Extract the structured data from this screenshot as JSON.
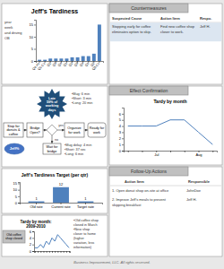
{
  "annotations": [
    "Stop for\ndonuts &\ncoffee",
    "Bridge\nOpen?",
    "Organize\nfor work",
    "Ready for\nwork",
    "Wait for\nbridge",
    "Late\n59% of\nworking\ndays",
    "Jeff%",
    "yes",
    "no",
    "•Mug: 6 min\n•Short: 3 min\n•Long: 20 min",
    "•Mug delay: 4 min\n•Short: 37 sec\n•Long: 6 min",
    "Countermeasures",
    "Suspected Cause",
    "Action Item",
    "Respo.",
    "Stopping early for coffee\neliminates option to skip.",
    "Find new coffee shop\ncloser to work.",
    "Jeff H.",
    "Effect Confirmation",
    "Follow-Up Actions",
    "Action Item",
    "Responsible",
    "1. Open donut shop on-site at office",
    "JohnDoe",
    "2. Improve Jeff's meals to prevent\nskipping breakfast",
    "Jeff H.",
    "Business Improvement, LLC. All rights reserved."
  ],
  "chart_data": [
    {
      "type": "bar",
      "title": "Jeff's Tardiness",
      "categories": [
        "Q4-PY",
        "Q1-CY",
        "Q2",
        "Q3",
        "Q4",
        "Q1",
        "Q2",
        "Q3",
        "Q4",
        "Q1",
        "Q2",
        "Q3-CY"
      ],
      "values": [
        0.5,
        0.5,
        1,
        1,
        1,
        1,
        1.5,
        1.5,
        2,
        2,
        3,
        15
      ],
      "color": "#4f81bd",
      "ylim": [
        0,
        17
      ],
      "yticks": [
        0,
        5,
        10,
        15
      ],
      "annotations": [
        "year",
        "week",
        "and driving",
        "OB"
      ]
    },
    {
      "type": "bar",
      "title": "Jeff's Tardiness Target (per qtr)",
      "categories": [
        "Old rate",
        "Current rate",
        "Target rate"
      ],
      "values": [
        1,
        12,
        1
      ],
      "color": "#4f81bd",
      "ylim": [
        0,
        16
      ],
      "yticks": [
        0,
        5,
        10,
        15
      ],
      "data_labels": true
    },
    {
      "type": "line",
      "title": "Tardy by month:\n2009-2010",
      "categories": [
        null,
        null,
        null,
        null,
        null,
        null,
        null,
        null,
        null,
        null,
        null,
        null,
        null
      ],
      "values": [
        1,
        1,
        2,
        1,
        3,
        2,
        4,
        3,
        5,
        4,
        3,
        2,
        1
      ],
      "color": "#4f81bd",
      "ylim": [
        0,
        6
      ],
      "yticks": [
        0,
        2,
        4,
        6
      ],
      "annotations": [
        "Old coffee\nshop closed",
        "•Old coffee shop\nclosed in March\n•New shop\ncloser to home\n(higher\nvariation, less\ninformation)"
      ]
    },
    {
      "type": "line",
      "title": "Tardy by month",
      "categories": [
        null,
        null,
        "Jul",
        null,
        null,
        "Aug",
        null
      ],
      "values": [
        4,
        4,
        4,
        5,
        5,
        3,
        1
      ],
      "color": "#4f81bd",
      "ylim": [
        0,
        7
      ],
      "yticks": [
        0,
        1,
        2,
        3,
        4,
        5,
        6
      ]
    }
  ]
}
